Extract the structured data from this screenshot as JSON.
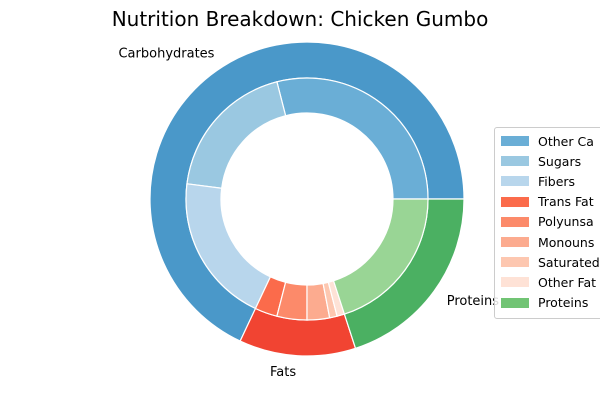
{
  "chart_data": {
    "type": "pie",
    "subtype": "nested-donut",
    "title": "Nutrition Breakdown:  Chicken Gumbo",
    "outer_ring": {
      "categories": [
        "Carbohydrates",
        "Fats",
        "Proteins"
      ],
      "values": [
        68,
        12,
        20
      ],
      "colors": [
        "#4a98c9",
        "#f14432",
        "#4bb062"
      ]
    },
    "inner_ring": {
      "categories": [
        "Other Carbs",
        "Sugars",
        "Fibers",
        "Trans Fats",
        "Polyunsaturated",
        "Monounsaturated",
        "Saturated",
        "Other Fats",
        "Proteins"
      ],
      "parents": [
        "Carbohydrates",
        "Carbohydrates",
        "Carbohydrates",
        "Fats",
        "Fats",
        "Fats",
        "Fats",
        "Fats",
        "Proteins"
      ],
      "values": [
        29,
        19,
        20,
        3,
        4,
        3,
        1,
        1,
        20
      ],
      "colors": [
        "#6aaed6",
        "#9ac8e1",
        "#b8d6ec",
        "#fb6b4b",
        "#fc8a6a",
        "#fcab8f",
        "#fdc7b0",
        "#fee2d6",
        "#99d595"
      ]
    },
    "legend": {
      "placement": "right",
      "entries": [
        "Other Ca",
        "Sugars",
        "Fibers",
        "Trans Fat",
        "Polyunsa",
        "Monouns",
        "Saturated",
        "Other Fat",
        "Proteins"
      ],
      "colors": [
        "#6aaed6",
        "#9ac8e1",
        "#b8d6ec",
        "#fb6b4b",
        "#fc8a6a",
        "#fcab8f",
        "#fdc7b0",
        "#fee2d6",
        "#71c474"
      ]
    },
    "start_angle_deg": 0,
    "direction": "counterclockwise"
  }
}
